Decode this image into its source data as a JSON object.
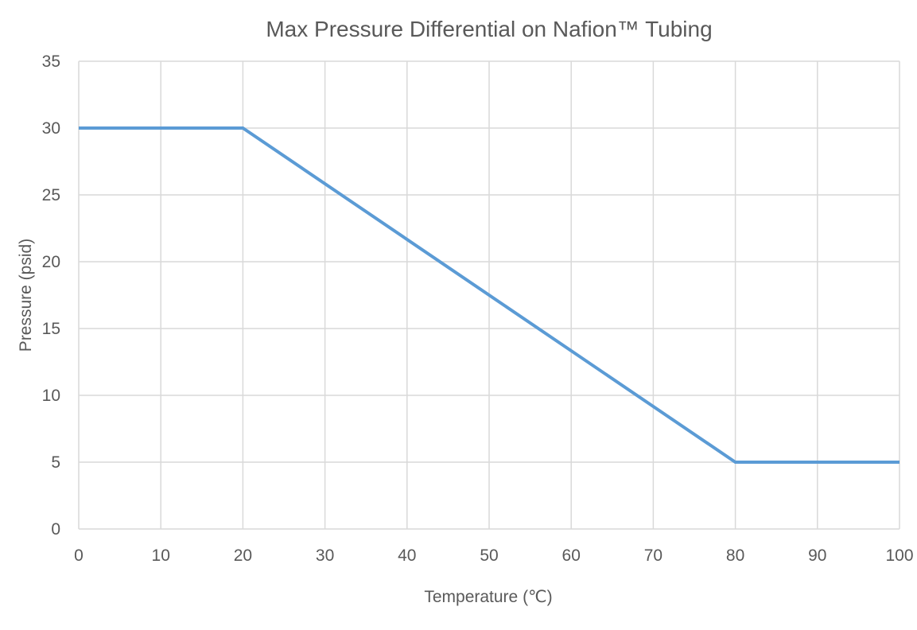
{
  "chart_data": {
    "type": "line",
    "title": "Max Pressure Differential on Nafion™ Tubing",
    "xlabel": "Temperature (℃)",
    "ylabel": "Pressure (psid)",
    "xlim": [
      0,
      100
    ],
    "ylim": [
      0,
      35
    ],
    "x_ticks": [
      0,
      10,
      20,
      30,
      40,
      50,
      60,
      70,
      80,
      90,
      100
    ],
    "y_ticks": [
      0,
      5,
      10,
      15,
      20,
      25,
      30,
      35
    ],
    "grid": true,
    "legend": "none",
    "series": [
      {
        "x": [
          0,
          20,
          80,
          100
        ],
        "y": [
          30,
          30,
          5,
          5
        ],
        "color": "#5b9bd5"
      }
    ]
  }
}
